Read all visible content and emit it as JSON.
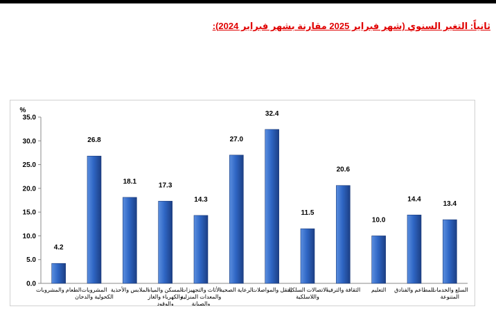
{
  "heading": "ثانياً: التغير السنوي (شهر فبراير 2025 مقارنة بشهر فبراير 2024):",
  "colors": {
    "bar_light": "#5b8fe0",
    "bar_mid": "#2f66c4",
    "bar_dark": "#1c3f85",
    "heading": "#e00000"
  },
  "chart_data": {
    "type": "bar",
    "title": "",
    "xlabel": "",
    "ylabel": "%",
    "ylim": [
      0,
      35
    ],
    "yticks": [
      "0.0",
      "5.0",
      "10.0",
      "15.0",
      "20.0",
      "25.0",
      "30.0",
      "35.0"
    ],
    "grid": false,
    "categories": [
      [
        "الطعام والمشروبات"
      ],
      [
        "المشروبات",
        "الكحولية والدخان"
      ],
      [
        "الملابس والأحذية"
      ],
      [
        "المسكن والمياه",
        "والكهرباء والغاز",
        "والوقود"
      ],
      [
        "الأثاث والتجهيزات",
        "والمعدات المنزلية",
        "والصيانة"
      ],
      [
        "الرعاية الصحية"
      ],
      [
        "النقل والمواصلات"
      ],
      [
        "الاتصالات السلكية",
        "واللاسلكية"
      ],
      [
        "الثقافة والترفيه"
      ],
      [
        "التعليم"
      ],
      [
        "المطاعم والفنادق"
      ],
      [
        "السلع والخدمات",
        "المتنوعة"
      ]
    ],
    "values": [
      4.2,
      26.8,
      18.1,
      17.3,
      14.3,
      27.0,
      32.4,
      11.5,
      20.6,
      10.0,
      14.4,
      13.4
    ],
    "value_labels": [
      "4.2",
      "26.8",
      "18.1",
      "17.3",
      "14.3",
      "27.0",
      "32.4",
      "11.5",
      "20.6",
      "10.0",
      "14.4",
      "13.4"
    ]
  }
}
